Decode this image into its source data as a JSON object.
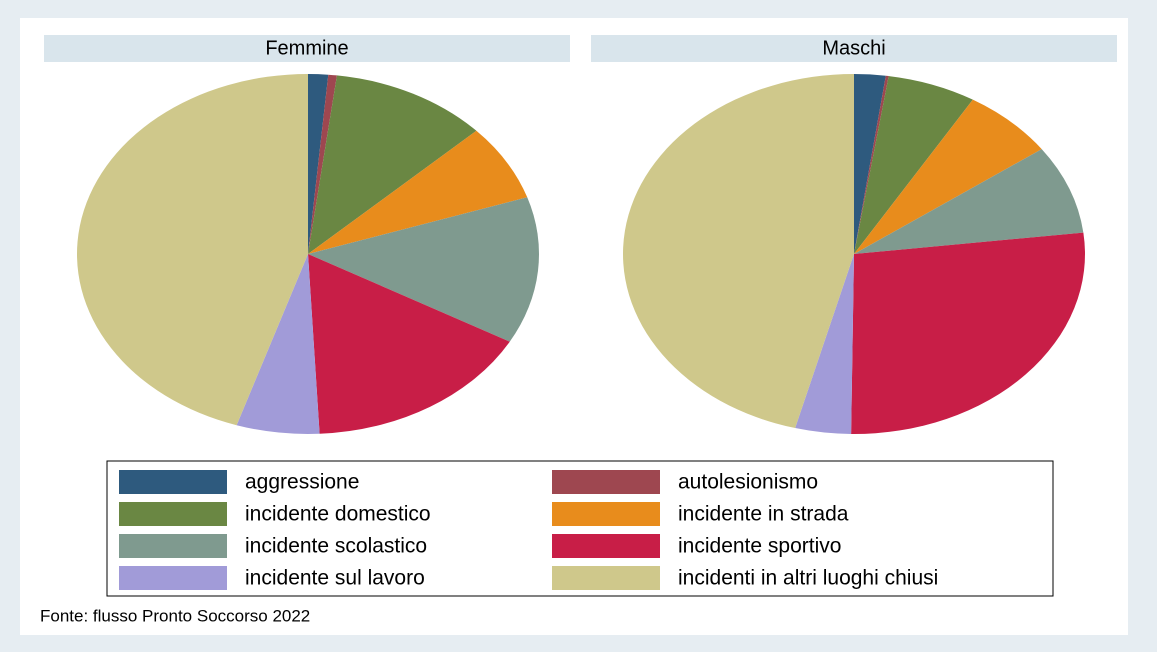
{
  "chart_data": [
    {
      "type": "pie",
      "title": "Femmine",
      "values": [
        1.4,
        0.6,
        11.0,
        6.9,
        13.2,
        16.1,
        5.8,
        45.0
      ]
    },
    {
      "type": "pie",
      "title": "Maschi",
      "values": [
        2.2,
        0.2,
        6.2,
        6.5,
        8.0,
        27.1,
        3.9,
        45.9
      ]
    }
  ],
  "legend": {
    "categories": [
      "aggressione",
      "autolesionismo",
      "incidente domestico",
      "incidente in strada",
      "incidente scolastico",
      "incidente sportivo",
      "incidente sul lavoro",
      "incidenti in altri luoghi chiusi"
    ],
    "colors": [
      "#2e5a7e",
      "#9e4750",
      "#6a8743",
      "#e88c1c",
      "#7f9a8f",
      "#c81e47",
      "#a19bd8",
      "#cfc88b"
    ]
  },
  "source": "Fonte: flusso Pronto Soccorso 2022"
}
